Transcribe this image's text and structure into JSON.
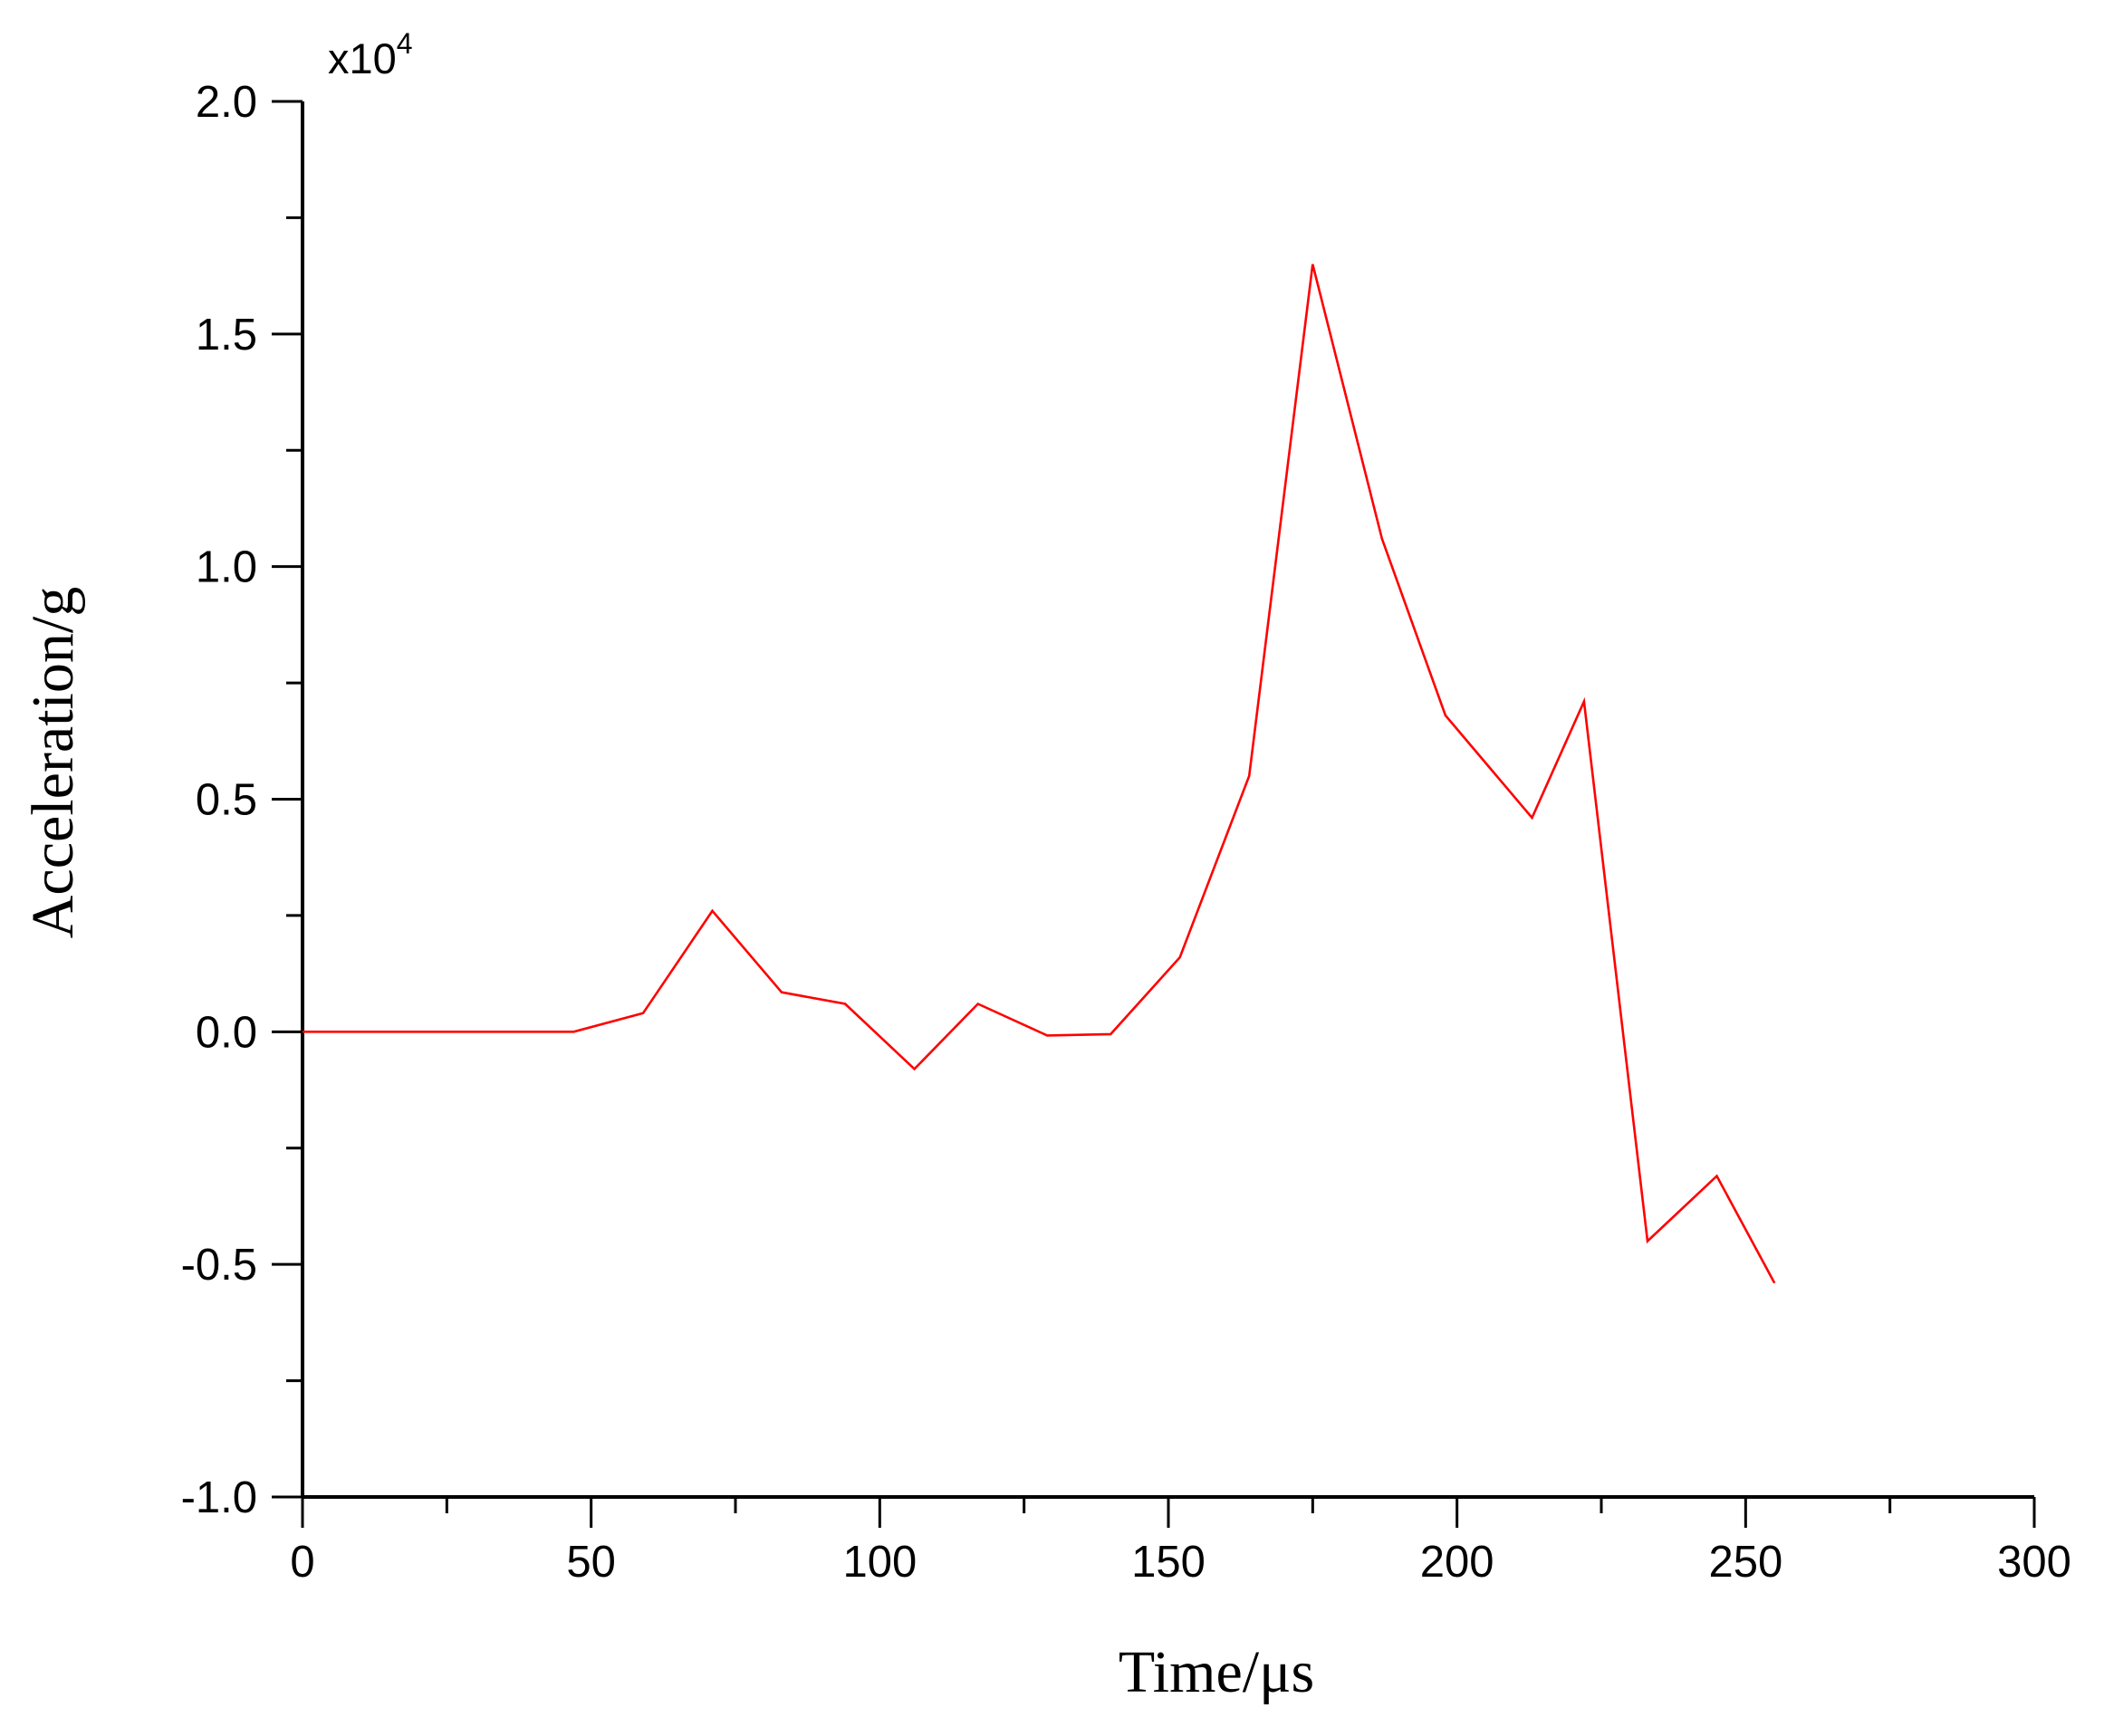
{
  "chart_data": {
    "type": "line",
    "title": "",
    "xlabel": "Time/μs",
    "ylabel": "Acceleration/g",
    "y_multiplier_base": "x10",
    "y_multiplier_exp": "4",
    "xlim": [
      0,
      300
    ],
    "ylim": [
      -1.0,
      2.0
    ],
    "x_ticks": [
      0,
      50,
      100,
      150,
      200,
      250,
      300
    ],
    "x_tick_labels": [
      "0",
      "50",
      "100",
      "150",
      "200",
      "250",
      "300"
    ],
    "y_ticks": [
      -1.0,
      -0.5,
      0.0,
      0.5,
      1.0,
      1.5,
      2.0
    ],
    "y_tick_labels": [
      "-1.0",
      "-0.5",
      "0.0",
      "0.5",
      "1.0",
      "1.5",
      "2.0"
    ],
    "grid": false,
    "line_color": "#ff0000",
    "series": [
      {
        "x": [
          0,
          23,
          47,
          59,
          71,
          83,
          94,
          106,
          117,
          129,
          140,
          152,
          164,
          175,
          187,
          198,
          213,
          222,
          233,
          245,
          255
        ],
        "y": [
          0.0,
          0.0,
          0.0,
          0.04,
          0.26,
          0.085,
          0.06,
          -0.08,
          0.06,
          -0.008,
          -0.005,
          0.16,
          0.55,
          1.65,
          1.06,
          0.68,
          0.46,
          0.71,
          -0.45,
          -0.31,
          -0.54
        ]
      }
    ]
  }
}
